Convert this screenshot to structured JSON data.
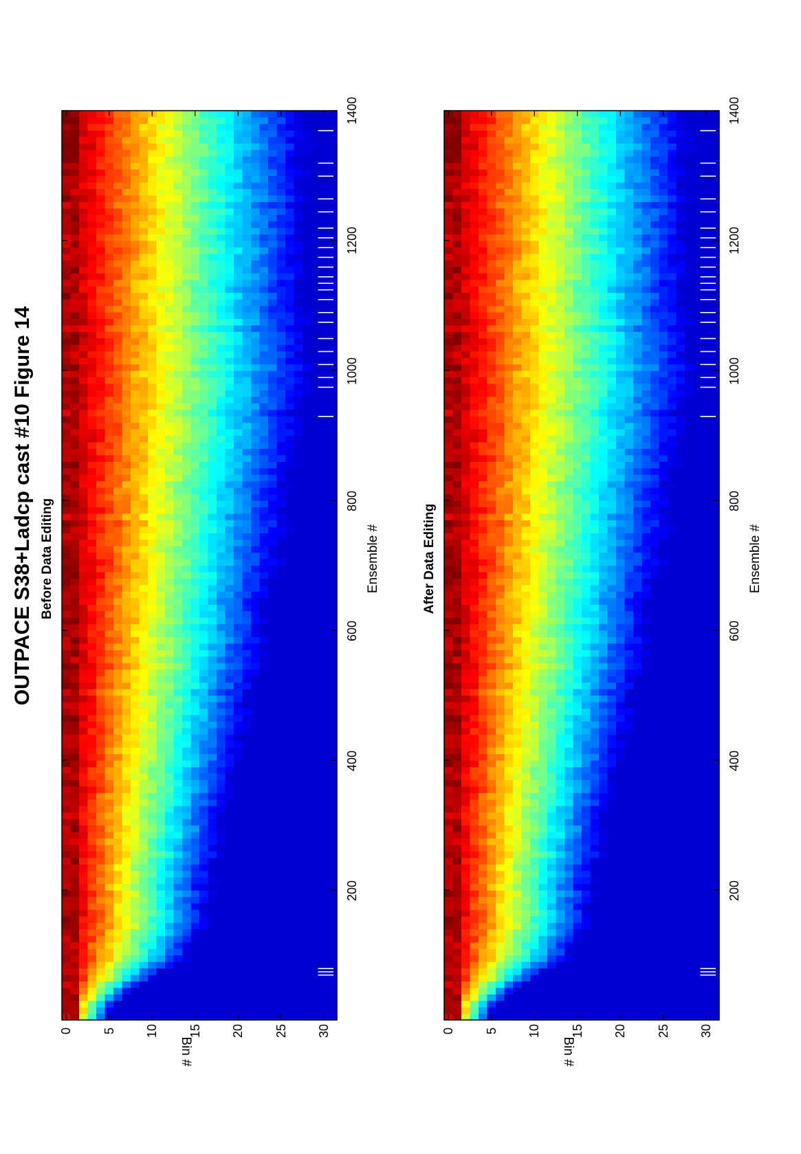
{
  "figure": {
    "title": "OUTPACE S38+Ladcp cast #10  Figure 14"
  },
  "chart_data": [
    {
      "type": "heatmap",
      "title": "Before Data Editing",
      "xlabel": "Ensemble #",
      "ylabel": "Bin #",
      "xlim": [
        0,
        1400
      ],
      "ylim": [
        0,
        32
      ],
      "xticks": [
        "200",
        "400",
        "600",
        "800",
        "1000",
        "1200",
        "1400"
      ],
      "yticks": [
        "0",
        "5",
        "10",
        "15",
        "20",
        "25",
        "30"
      ],
      "colormap": "jet",
      "bins": 32,
      "ensembles": 1400,
      "z_range": [
        0,
        1
      ],
      "boundary_profile": {
        "ensemble": [
          0,
          50,
          100,
          150,
          200,
          300,
          400,
          500,
          600,
          650,
          700,
          750,
          800,
          850,
          900,
          950,
          1000,
          1050,
          1100,
          1150,
          1200,
          1250,
          1300,
          1350,
          1400
        ],
        "scale": [
          0.1,
          0.3,
          0.52,
          0.58,
          0.6,
          0.66,
          0.72,
          0.78,
          0.84,
          0.84,
          0.88,
          0.92,
          0.92,
          0.95,
          0.97,
          1.0,
          1.02,
          1.0,
          0.98,
          1.0,
          1.0,
          1.0,
          1.0,
          1.0,
          1.0
        ]
      },
      "gap_marks": [
        70,
        75,
        80,
        930,
        975,
        990,
        1010,
        1030,
        1050,
        1075,
        1090,
        1110,
        1125,
        1135,
        1145,
        1160,
        1175,
        1190,
        1205,
        1220,
        1245,
        1265,
        1300,
        1320,
        1370
      ]
    },
    {
      "type": "heatmap",
      "title": "After Data Editing",
      "xlabel": "Ensemble #",
      "ylabel": "Bin #",
      "xlim": [
        0,
        1400
      ],
      "ylim": [
        0,
        32
      ],
      "xticks": [
        "200",
        "400",
        "600",
        "800",
        "1000",
        "1200",
        "1400"
      ],
      "yticks": [
        "0",
        "5",
        "10",
        "15",
        "20",
        "25",
        "30"
      ],
      "colormap": "jet",
      "bins": 32,
      "ensembles": 1400,
      "z_range": [
        0,
        1
      ],
      "boundary_profile": {
        "ensemble": [
          0,
          50,
          100,
          150,
          200,
          300,
          400,
          500,
          600,
          650,
          700,
          750,
          800,
          850,
          900,
          950,
          1000,
          1050,
          1100,
          1150,
          1200,
          1250,
          1300,
          1350,
          1400
        ],
        "scale": [
          0.1,
          0.3,
          0.52,
          0.58,
          0.6,
          0.66,
          0.72,
          0.78,
          0.84,
          0.84,
          0.88,
          0.92,
          0.92,
          0.95,
          0.97,
          1.0,
          1.02,
          1.0,
          0.98,
          1.0,
          1.0,
          1.0,
          1.0,
          1.0,
          1.0
        ]
      },
      "gap_marks": [
        70,
        75,
        80,
        930,
        975,
        990,
        1010,
        1030,
        1050,
        1075,
        1090,
        1110,
        1125,
        1135,
        1145,
        1160,
        1175,
        1190,
        1205,
        1220,
        1245,
        1265,
        1300,
        1320,
        1370
      ]
    }
  ]
}
